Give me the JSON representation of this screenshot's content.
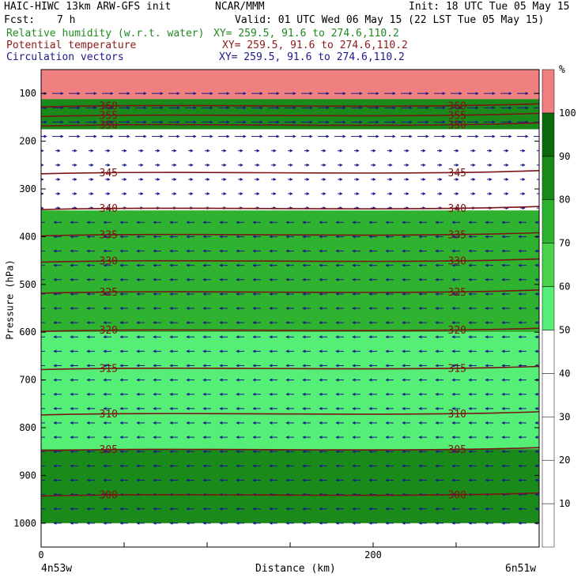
{
  "header": {
    "title_left": "HAIC-HIWC 13km ARW-GFS init",
    "org": "NCAR/MMM",
    "init": "Init: 18 UTC Tue 05 May 15",
    "fcst_label": "Fcst:",
    "fcst_value": "7 h",
    "valid": "Valid: 01 UTC Wed 06 May 15 (22 LST Tue 05 May 15)",
    "fields": [
      {
        "name": "Relative humidity (w.r.t. water)",
        "xy": "XY= 259.5, 91.6 to 274.6,110.2",
        "color": "#1f8a1f"
      },
      {
        "name": "Potential temperature",
        "xy": "XY= 259.5, 91.6 to 274.6,110.2",
        "color": "#8b1a1a"
      },
      {
        "name": "Circulation vectors",
        "xy": "XY= 259.5, 91.6 to 274.6,110.2",
        "color": "#1a1a8b"
      }
    ]
  },
  "chart_data": {
    "type": "heatmap",
    "xlabel": "Distance (km)",
    "ylabel": "Pressure (hPa)",
    "x_tick_labels": [
      "0",
      "200"
    ],
    "x_ticks": [
      0,
      200
    ],
    "xlim": [
      0,
      300
    ],
    "x_end_labels": {
      "left": "4n53w",
      "right": "6n51w"
    },
    "y_ticks": [
      100,
      200,
      300,
      400,
      500,
      600,
      700,
      800,
      900,
      1000
    ],
    "ylim": [
      50,
      1050
    ],
    "colorbar": {
      "unit": "%",
      "levels": [
        10,
        20,
        30,
        40,
        50,
        60,
        70,
        80,
        90,
        100
      ],
      "colors": [
        "#ffffff",
        "#ffffff",
        "#ffffff",
        "#ffffff",
        "#ffffff",
        "#55ee77",
        "#4ad24a",
        "#2fb22f",
        "#1a8a1a",
        "#0a6a0a",
        "#f08080"
      ]
    },
    "theta_contours": [
      {
        "label": "360",
        "p": 125
      },
      {
        "label": "355",
        "p": 145
      },
      {
        "label": "350",
        "p": 165
      },
      {
        "label": "345",
        "p": 265
      },
      {
        "label": "340",
        "p": 340
      },
      {
        "label": "335",
        "p": 395
      },
      {
        "label": "330",
        "p": 450
      },
      {
        "label": "325",
        "p": 515
      },
      {
        "label": "320",
        "p": 595
      },
      {
        "label": "315",
        "p": 675
      },
      {
        "label": "310",
        "p": 770
      },
      {
        "label": "305",
        "p": 845
      },
      {
        "label": "300",
        "p": 940
      }
    ],
    "rh_regions": [
      {
        "rh": 100,
        "p_top": 50,
        "p_bot": 112
      },
      {
        "rh": 80,
        "p_top": 112,
        "p_bot": 175
      },
      {
        "rh": 40,
        "p_top": 175,
        "p_bot": 345
      },
      {
        "rh": 75,
        "p_top": 345,
        "p_bot": 600
      },
      {
        "rh": 55,
        "p_top": 600,
        "p_bot": 845
      },
      {
        "rh": 85,
        "p_top": 845,
        "p_bot": 1000
      }
    ]
  }
}
